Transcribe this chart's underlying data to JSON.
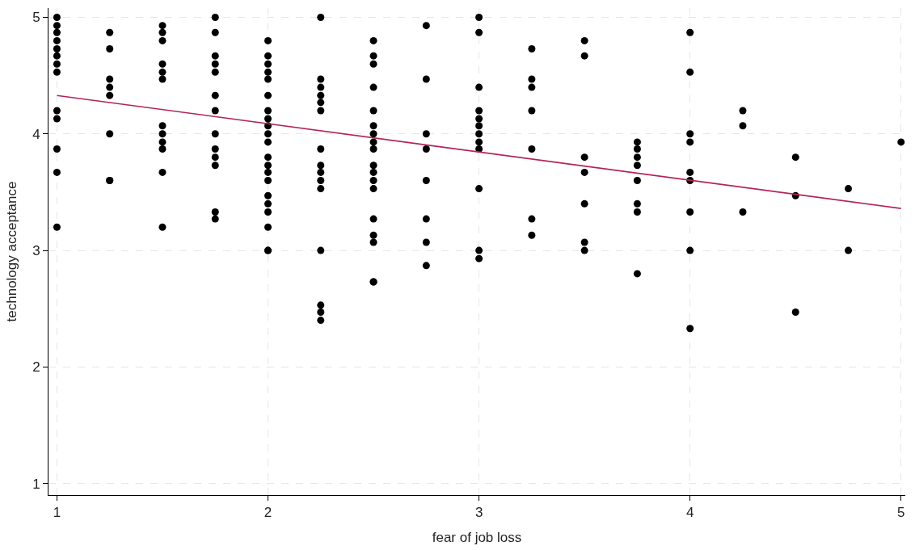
{
  "chart_data": {
    "type": "scatter",
    "xlabel": "fear of job loss",
    "ylabel": "technology acceptance",
    "xlim": [
      0.96,
      5.02
    ],
    "ylim": [
      0.9,
      5.08
    ],
    "xticks": [
      1,
      2,
      3,
      4,
      5
    ],
    "yticks": [
      1,
      2,
      3,
      4,
      5
    ],
    "grid": true,
    "series": [
      {
        "marker": "circle",
        "color": "#000000",
        "x": [
          1,
          1,
          1,
          1,
          1,
          1,
          1,
          1,
          1,
          1,
          1,
          1,
          1,
          1.25,
          1.25,
          1.25,
          1.25,
          1.25,
          1.25,
          1.25,
          1.25,
          1.5,
          1.5,
          1.5,
          1.5,
          1.5,
          1.5,
          1.5,
          1.5,
          1.5,
          1.5,
          1.5,
          1.5,
          1.75,
          1.75,
          1.75,
          1.75,
          1.75,
          1.75,
          1.75,
          1.75,
          1.75,
          1.75,
          1.75,
          1.75,
          1.75,
          2,
          2,
          2,
          2,
          2,
          2,
          2,
          2,
          2,
          2,
          2,
          2,
          2,
          2,
          2,
          2,
          2,
          2,
          2,
          2,
          2,
          2.25,
          2.25,
          2.25,
          2.25,
          2.25,
          2.25,
          2.25,
          2.25,
          2.25,
          2.25,
          2.25,
          2.25,
          2.25,
          2.25,
          2.25,
          2.5,
          2.5,
          2.5,
          2.5,
          2.5,
          2.5,
          2.5,
          2.5,
          2.5,
          2.5,
          2.5,
          2.5,
          2.5,
          2.5,
          2.5,
          2.5,
          2.5,
          2.5,
          2.75,
          2.75,
          2.75,
          2.75,
          2.75,
          2.75,
          2.75,
          2.75,
          3,
          3,
          3,
          3,
          3,
          3,
          3,
          3,
          3,
          3,
          3,
          3,
          3.25,
          3.25,
          3.25,
          3.25,
          3.25,
          3.25,
          3.25,
          3.5,
          3.5,
          3.5,
          3.5,
          3.5,
          3.5,
          3.5,
          3.75,
          3.75,
          3.75,
          3.75,
          3.75,
          3.75,
          3.75,
          3.75,
          4,
          4,
          4,
          4,
          4,
          4,
          4,
          4,
          4,
          4.25,
          4.25,
          4.25,
          4.5,
          4.5,
          4.5,
          4.75,
          4.75,
          5
        ],
        "values": [
          5.0,
          4.93,
          4.87,
          4.8,
          4.73,
          4.67,
          4.6,
          4.53,
          4.2,
          4.13,
          3.87,
          3.67,
          3.2,
          4.87,
          4.73,
          4.47,
          4.4,
          4.33,
          4.0,
          3.6,
          3.6,
          4.93,
          4.87,
          4.8,
          4.6,
          4.53,
          4.47,
          4.07,
          4.0,
          3.93,
          3.87,
          3.67,
          3.2,
          5.0,
          4.87,
          4.67,
          4.6,
          4.53,
          4.33,
          4.2,
          4.0,
          3.87,
          3.8,
          3.73,
          3.33,
          3.27,
          4.8,
          4.67,
          4.6,
          4.53,
          4.47,
          4.33,
          4.2,
          4.13,
          4.07,
          4.0,
          3.93,
          3.8,
          3.73,
          3.67,
          3.6,
          3.47,
          3.4,
          3.33,
          3.2,
          3.0,
          3.0,
          5.0,
          4.47,
          4.4,
          4.33,
          4.27,
          4.2,
          3.87,
          3.73,
          3.67,
          3.6,
          3.53,
          3.0,
          2.53,
          2.47,
          2.4,
          4.8,
          4.67,
          4.6,
          4.4,
          4.2,
          4.07,
          4.0,
          3.93,
          3.87,
          3.73,
          3.67,
          3.6,
          3.53,
          3.27,
          3.13,
          3.07,
          2.73,
          2.73,
          4.93,
          4.47,
          4.0,
          3.87,
          3.6,
          3.27,
          3.07,
          2.87,
          5.0,
          4.87,
          4.4,
          4.2,
          4.13,
          4.07,
          4.0,
          3.93,
          3.87,
          3.53,
          3.0,
          2.93,
          4.73,
          4.47,
          4.4,
          4.2,
          3.87,
          3.27,
          3.13,
          4.8,
          4.67,
          3.8,
          3.67,
          3.4,
          3.07,
          3.0,
          3.93,
          3.87,
          3.8,
          3.73,
          3.6,
          3.4,
          3.33,
          2.8,
          4.87,
          4.53,
          4.0,
          3.93,
          3.67,
          3.6,
          3.33,
          3.0,
          2.33,
          4.2,
          4.07,
          3.33,
          3.8,
          3.47,
          2.47,
          3.53,
          3.0,
          3.93
        ]
      },
      {
        "type": "line",
        "color": "#b5225b",
        "x": [
          1,
          5
        ],
        "values": [
          4.33,
          3.36
        ]
      }
    ]
  }
}
